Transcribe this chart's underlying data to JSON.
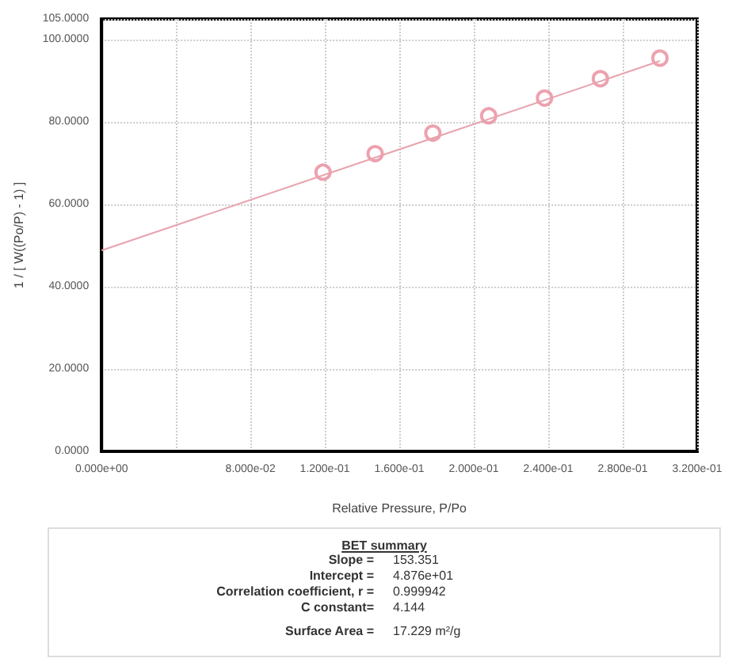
{
  "chart_data": [
    {
      "type": "scatter",
      "xlabel": "Relative Pressure, P/Po",
      "ylabel": "1 / [ W((Po/P) - 1) ]",
      "xlim": [
        0,
        0.32
      ],
      "xticks": [
        {
          "value": 0,
          "label": "0.000e+00"
        },
        {
          "value": 0.04,
          "label": null
        },
        {
          "value": 0.08,
          "label": "8.000e-02"
        },
        {
          "value": 0.12,
          "label": "1.200e-01"
        },
        {
          "value": 0.16,
          "label": "1.600e-01"
        },
        {
          "value": 0.2,
          "label": "2.000e-01"
        },
        {
          "value": 0.24,
          "label": "2.400e-01"
        },
        {
          "value": 0.28,
          "label": "2.800e-01"
        },
        {
          "value": 0.32,
          "label": "3.200e-01"
        }
      ],
      "ylim": [
        0,
        105
      ],
      "yticks": [
        {
          "value": 0,
          "label": "0.0000"
        },
        {
          "value": 20,
          "label": "20.0000"
        },
        {
          "value": 40,
          "label": "40.0000"
        },
        {
          "value": 60,
          "label": "60.0000"
        },
        {
          "value": 80,
          "label": "80.0000"
        },
        {
          "value": 100,
          "label": "100.0000"
        },
        {
          "value": 105,
          "label": "105.0000"
        }
      ],
      "grid": true,
      "series": [
        {
          "type": "scatter",
          "marker": "circle",
          "color": "#e8899b",
          "x": [
            0.119,
            0.147,
            0.178,
            0.208,
            0.238,
            0.268,
            0.3
          ],
          "values": [
            67.8,
            72.3,
            77.3,
            81.5,
            85.8,
            90.5,
            95.5
          ]
        },
        {
          "type": "line",
          "marker": "none",
          "color": "#e8a3ae",
          "x": [
            0,
            0.3
          ],
          "values": [
            48.8,
            94.8
          ]
        }
      ]
    },
    {
      "type": "other",
      "title": "BET summary",
      "annotations": [
        "Slope = 153.351",
        "Intercept = 4.876e+01",
        "Correlation coefficient, r = 0.999942",
        "C constant= 4.144",
        "Surface Area = 17.229 m²/g"
      ]
    }
  ]
}
